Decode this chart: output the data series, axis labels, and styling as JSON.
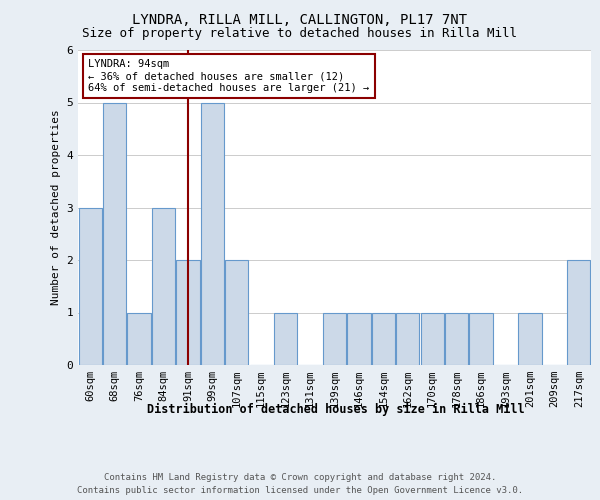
{
  "title_line1": "LYNDRA, RILLA MILL, CALLINGTON, PL17 7NT",
  "title_line2": "Size of property relative to detached houses in Rilla Mill",
  "xlabel": "Distribution of detached houses by size in Rilla Mill",
  "ylabel": "Number of detached properties",
  "bins": [
    "60sqm",
    "68sqm",
    "76sqm",
    "84sqm",
    "91sqm",
    "99sqm",
    "107sqm",
    "115sqm",
    "123sqm",
    "131sqm",
    "139sqm",
    "146sqm",
    "154sqm",
    "162sqm",
    "170sqm",
    "178sqm",
    "186sqm",
    "193sqm",
    "201sqm",
    "209sqm",
    "217sqm"
  ],
  "counts": [
    3,
    5,
    1,
    3,
    2,
    5,
    2,
    0,
    1,
    0,
    1,
    1,
    1,
    1,
    1,
    1,
    1,
    0,
    1,
    0,
    2
  ],
  "bar_color": "#ccd9e8",
  "bar_edge_color": "#6699cc",
  "property_bin_index": 4,
  "marker_line_color": "#8b0000",
  "annotation_text": "LYNDRA: 94sqm\n← 36% of detached houses are smaller (12)\n64% of semi-detached houses are larger (21) →",
  "annotation_box_color": "white",
  "annotation_box_edge_color": "#8b0000",
  "ylim": [
    0,
    6
  ],
  "yticks": [
    0,
    1,
    2,
    3,
    4,
    5,
    6
  ],
  "footer_line1": "Contains HM Land Registry data © Crown copyright and database right 2024.",
  "footer_line2": "Contains public sector information licensed under the Open Government Licence v3.0.",
  "background_color": "#e8eef4",
  "plot_background_color": "#ffffff",
  "grid_color": "#cccccc",
  "title_fontsize": 10,
  "subtitle_fontsize": 9,
  "ylabel_fontsize": 8,
  "xlabel_fontsize": 8.5,
  "tick_fontsize": 7.5,
  "annotation_fontsize": 7.5,
  "footer_fontsize": 6.5
}
